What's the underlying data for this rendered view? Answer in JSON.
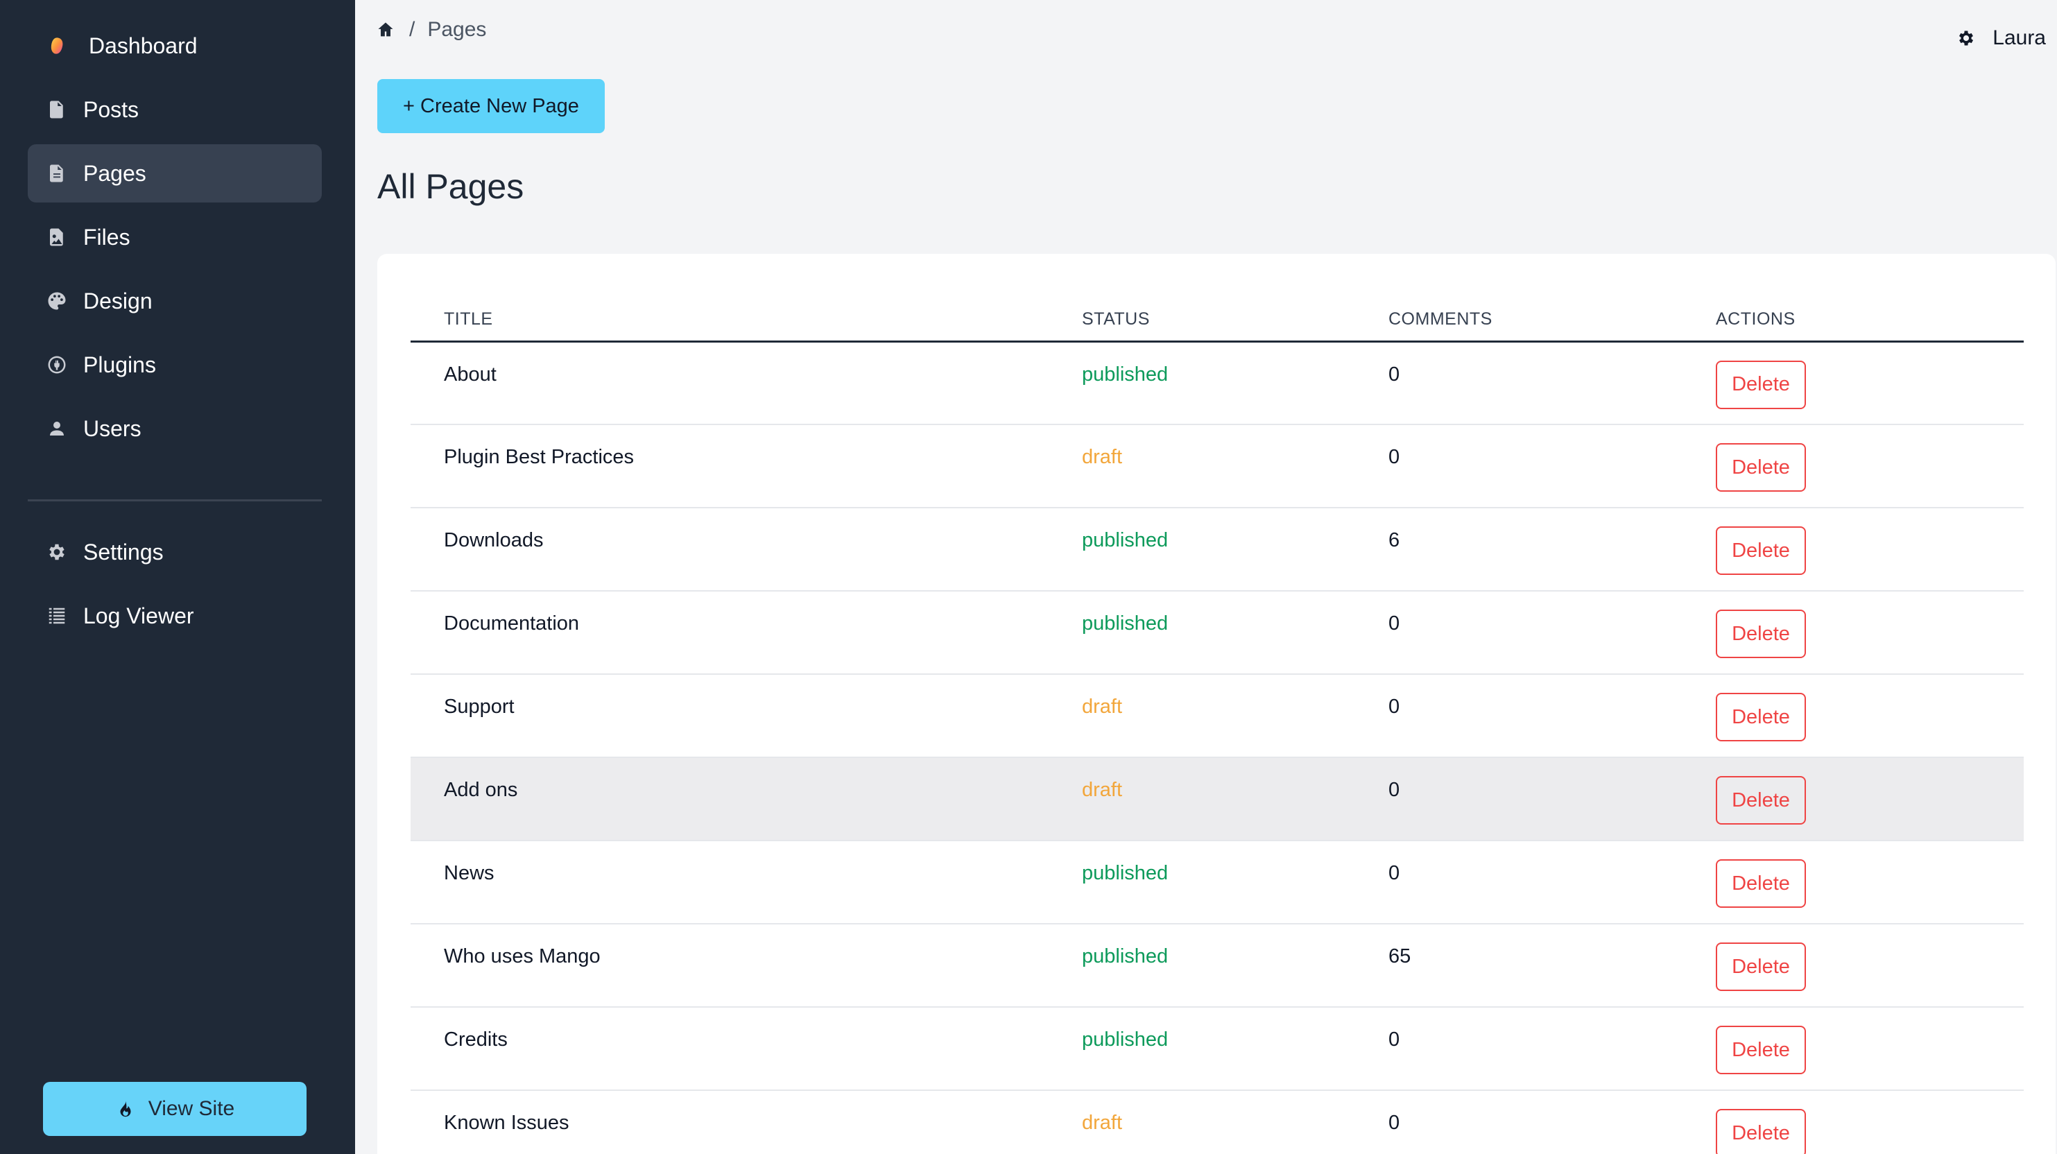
{
  "sidebar": {
    "items": [
      {
        "label": "Dashboard",
        "icon": "mango-logo-icon"
      },
      {
        "label": "Posts",
        "icon": "document-icon"
      },
      {
        "label": "Pages",
        "icon": "page-icon"
      },
      {
        "label": "Files",
        "icon": "image-file-icon"
      },
      {
        "label": "Design",
        "icon": "palette-icon"
      },
      {
        "label": "Plugins",
        "icon": "plugin-icon"
      },
      {
        "label": "Users",
        "icon": "user-icon"
      }
    ],
    "secondary": [
      {
        "label": "Settings",
        "icon": "gear-icon"
      },
      {
        "label": "Log Viewer",
        "icon": "list-icon"
      }
    ],
    "view_site": "View Site"
  },
  "header": {
    "breadcrumb_sep": "/",
    "breadcrumb_current": "Pages",
    "user_name": "Laura"
  },
  "main": {
    "create_button": "+ Create New Page",
    "title": "All Pages"
  },
  "table": {
    "headers": {
      "title": "TITLE",
      "status": "STATUS",
      "comments": "COMMENTS",
      "actions": "ACTIONS"
    },
    "delete_label": "Delete",
    "rows": [
      {
        "title": "About",
        "status": "published",
        "comments": "0"
      },
      {
        "title": "Plugin Best Practices",
        "status": "draft",
        "comments": "0"
      },
      {
        "title": "Downloads",
        "status": "published",
        "comments": "6"
      },
      {
        "title": "Documentation",
        "status": "published",
        "comments": "0"
      },
      {
        "title": "Support",
        "status": "draft",
        "comments": "0"
      },
      {
        "title": "Add ons",
        "status": "draft",
        "comments": "0"
      },
      {
        "title": "News",
        "status": "published",
        "comments": "0"
      },
      {
        "title": "Who uses Mango",
        "status": "published",
        "comments": "65"
      },
      {
        "title": "Credits",
        "status": "published",
        "comments": "0"
      },
      {
        "title": "Known Issues",
        "status": "draft",
        "comments": "0"
      }
    ]
  },
  "colors": {
    "sidebar_bg": "#1f2937",
    "accent": "#5ed3fa",
    "published": "#0c9a5a",
    "draft": "#f2a63b",
    "danger": "#ef4444"
  }
}
